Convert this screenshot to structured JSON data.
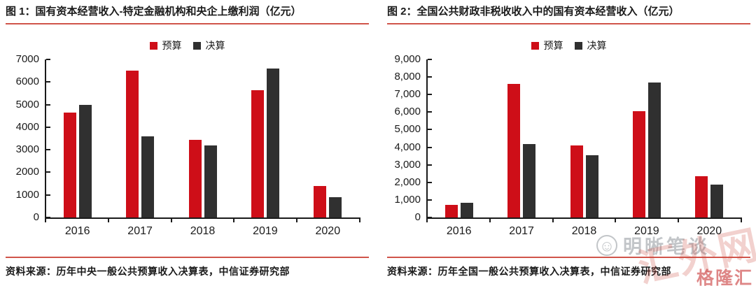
{
  "colors": {
    "budget_red": "#ce0e18",
    "final_dark": "#303030",
    "accent_rule": "#d0544a",
    "axis": "#1a1a1a"
  },
  "figures": [
    {
      "title": "图 1：国有资本经营收入-特定金融机构和央企上缴利润（亿元）",
      "source": "资料来源：历年中央一般公共预算收入决算表，中信证券研究部"
    },
    {
      "title": "图 2：全国公共财政非税收收入中的国有资本经营收入（亿元）",
      "source": "资料来源：历年全国一般公共预算收入决算表，中信证券研究部"
    }
  ],
  "chart_data": [
    {
      "type": "bar",
      "title": "国有资本经营收入-特定金融机构和央企上缴利润（亿元）",
      "categories": [
        "2016",
        "2017",
        "2018",
        "2019",
        "2020"
      ],
      "series": [
        {
          "name": "预算",
          "color": "#ce0e18",
          "values": [
            4650,
            6500,
            3450,
            5650,
            1400
          ]
        },
        {
          "name": "决算",
          "color": "#303030",
          "values": [
            5000,
            3600,
            3200,
            6600,
            900
          ]
        }
      ],
      "xlabel": "",
      "ylabel": "",
      "ylim": [
        0,
        7000
      ],
      "yticks": [
        "0",
        "1000",
        "2000",
        "3000",
        "4000",
        "5000",
        "6000",
        "7000"
      ],
      "grid": false,
      "legend_position": "top-center"
    },
    {
      "type": "bar",
      "title": "全国公共财政非税收收入中的国有资本经营收入（亿元）",
      "categories": [
        "2016",
        "2017",
        "2018",
        "2019",
        "2020"
      ],
      "series": [
        {
          "name": "预算",
          "color": "#ce0e18",
          "values": [
            730,
            7600,
            4100,
            6050,
            2350
          ]
        },
        {
          "name": "决算",
          "color": "#303030",
          "values": [
            830,
            4200,
            3550,
            7700,
            1880
          ]
        }
      ],
      "xlabel": "",
      "ylabel": "",
      "ylim": [
        0,
        9000
      ],
      "yticks": [
        "0",
        "1,000",
        "2,000",
        "3,000",
        "4,000",
        "5,000",
        "6,000",
        "7,000",
        "8,000",
        "9,000"
      ],
      "grid": false,
      "legend_position": "top-center"
    }
  ],
  "watermarks": {
    "face": "☺",
    "chat": "明晰笔谈",
    "outline": "汇外网",
    "corner": "格隆汇"
  }
}
